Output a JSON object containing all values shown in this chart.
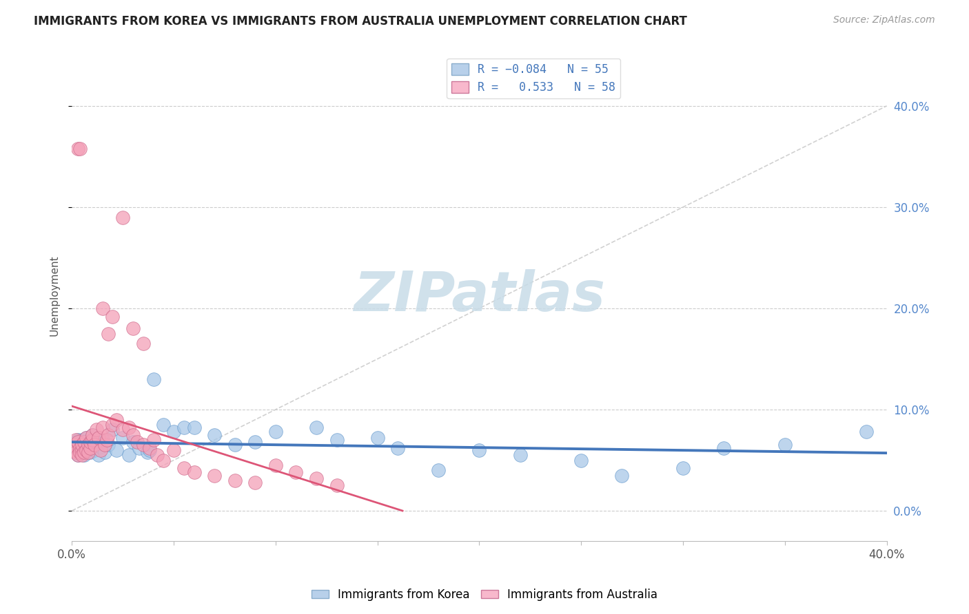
{
  "title": "IMMIGRANTS FROM KOREA VS IMMIGRANTS FROM AUSTRALIA UNEMPLOYMENT CORRELATION CHART",
  "source": "Source: ZipAtlas.com",
  "ylabel": "Unemployment",
  "ytick_labels": [
    "0.0%",
    "10.0%",
    "20.0%",
    "30.0%",
    "40.0%"
  ],
  "ytick_values": [
    0.0,
    0.1,
    0.2,
    0.3,
    0.4
  ],
  "xlim": [
    0.0,
    0.4
  ],
  "ylim": [
    -0.03,
    0.455
  ],
  "korea_color": "#a8c8e8",
  "korea_edge": "#6699cc",
  "korea_line_color": "#4477bb",
  "aus_color": "#f4a0b8",
  "aus_edge": "#cc6688",
  "aus_line_color": "#dd5577",
  "ref_line_color": "#cccccc",
  "grid_color": "#cccccc",
  "watermark": "ZIPatlas",
  "watermark_color_zip": "#b8cce0",
  "watermark_color_atlas": "#c8dce8",
  "background_color": "#ffffff",
  "korea_x": [
    0.001,
    0.002,
    0.002,
    0.003,
    0.003,
    0.004,
    0.004,
    0.005,
    0.005,
    0.006,
    0.006,
    0.007,
    0.007,
    0.008,
    0.008,
    0.009,
    0.01,
    0.01,
    0.011,
    0.012,
    0.013,
    0.014,
    0.015,
    0.016,
    0.018,
    0.02,
    0.022,
    0.025,
    0.028,
    0.03,
    0.033,
    0.037,
    0.04,
    0.045,
    0.05,
    0.055,
    0.06,
    0.07,
    0.08,
    0.09,
    0.1,
    0.12,
    0.13,
    0.15,
    0.16,
    0.18,
    0.2,
    0.22,
    0.25,
    0.27,
    0.3,
    0.32,
    0.35,
    0.39,
    0.038
  ],
  "korea_y": [
    0.065,
    0.06,
    0.068,
    0.055,
    0.07,
    0.058,
    0.065,
    0.062,
    0.07,
    0.055,
    0.068,
    0.063,
    0.072,
    0.06,
    0.066,
    0.058,
    0.075,
    0.065,
    0.06,
    0.068,
    0.055,
    0.063,
    0.07,
    0.058,
    0.065,
    0.08,
    0.06,
    0.072,
    0.055,
    0.068,
    0.062,
    0.058,
    0.13,
    0.085,
    0.078,
    0.082,
    0.082,
    0.075,
    0.065,
    0.068,
    0.078,
    0.082,
    0.07,
    0.072,
    0.062,
    0.04,
    0.06,
    0.055,
    0.05,
    0.035,
    0.042,
    0.062,
    0.065,
    0.078,
    0.06
  ],
  "aus_x": [
    0.001,
    0.001,
    0.002,
    0.002,
    0.003,
    0.003,
    0.004,
    0.004,
    0.005,
    0.005,
    0.005,
    0.006,
    0.006,
    0.007,
    0.007,
    0.008,
    0.008,
    0.009,
    0.009,
    0.01,
    0.01,
    0.011,
    0.012,
    0.013,
    0.014,
    0.015,
    0.016,
    0.017,
    0.018,
    0.02,
    0.022,
    0.025,
    0.028,
    0.03,
    0.032,
    0.035,
    0.038,
    0.04,
    0.042,
    0.045,
    0.05,
    0.055,
    0.06,
    0.07,
    0.08,
    0.09,
    0.1,
    0.11,
    0.12,
    0.13,
    0.003,
    0.004,
    0.015,
    0.018,
    0.02,
    0.025,
    0.03,
    0.035
  ],
  "aus_y": [
    0.06,
    0.065,
    0.058,
    0.07,
    0.055,
    0.068,
    0.062,
    0.058,
    0.06,
    0.055,
    0.065,
    0.068,
    0.058,
    0.072,
    0.06,
    0.065,
    0.058,
    0.062,
    0.068,
    0.07,
    0.075,
    0.065,
    0.08,
    0.072,
    0.06,
    0.082,
    0.065,
    0.07,
    0.075,
    0.085,
    0.09,
    0.08,
    0.082,
    0.075,
    0.068,
    0.065,
    0.062,
    0.07,
    0.055,
    0.05,
    0.06,
    0.042,
    0.038,
    0.035,
    0.03,
    0.028,
    0.045,
    0.038,
    0.032,
    0.025,
    0.358,
    0.358,
    0.2,
    0.175,
    0.192,
    0.29,
    0.18,
    0.165
  ]
}
